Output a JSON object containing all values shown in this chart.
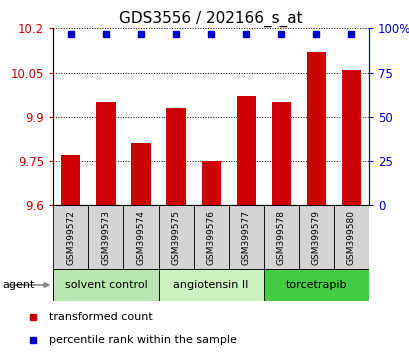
{
  "title": "GDS3556 / 202166_s_at",
  "samples": [
    "GSM399572",
    "GSM399573",
    "GSM399574",
    "GSM399575",
    "GSM399576",
    "GSM399577",
    "GSM399578",
    "GSM399579",
    "GSM399580"
  ],
  "transformed_counts": [
    9.77,
    9.95,
    9.81,
    9.93,
    9.75,
    9.97,
    9.95,
    10.12,
    10.06
  ],
  "percentile_ranks": [
    97,
    97,
    97,
    97,
    97,
    97,
    97,
    97,
    97
  ],
  "ylim_left": [
    9.6,
    10.2
  ],
  "ylim_right": [
    0,
    100
  ],
  "yticks_left": [
    9.6,
    9.75,
    9.9,
    10.05,
    10.2
  ],
  "yticks_right": [
    0,
    25,
    50,
    75,
    100
  ],
  "bar_color": "#cc0000",
  "dot_color": "#0000cc",
  "agent_groups": [
    {
      "label": "solvent control",
      "start": 0,
      "end": 3,
      "color": "#b8e8b0"
    },
    {
      "label": "angiotensin II",
      "start": 3,
      "end": 6,
      "color": "#ccf0c0"
    },
    {
      "label": "torcetrapib",
      "start": 6,
      "end": 9,
      "color": "#44cc44"
    }
  ],
  "legend_items": [
    {
      "label": "transformed count",
      "color": "#cc0000"
    },
    {
      "label": "percentile rank within the sample",
      "color": "#0000cc"
    }
  ],
  "left_axis_color": "#cc0000",
  "right_axis_color": "#0000cc",
  "title_fontsize": 11,
  "tick_fontsize": 8.5,
  "sample_fontsize": 6.5,
  "agent_fontsize": 8,
  "legend_fontsize": 8
}
